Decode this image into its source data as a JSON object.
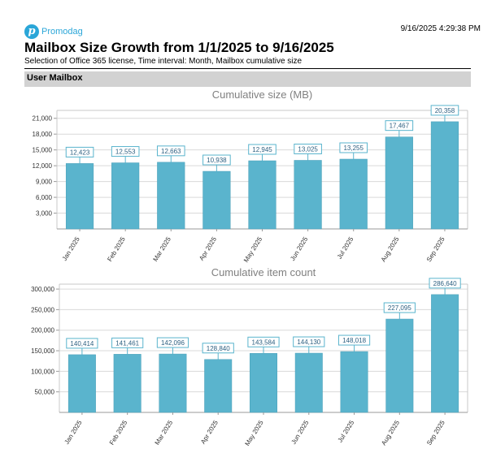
{
  "brand": {
    "name": "Promodag",
    "logo_letter": "p"
  },
  "timestamp": "9/16/2025 4:29:38 PM",
  "report": {
    "title": "Mailbox Size Growth from 1/1/2025 to 9/16/2025",
    "subtitle": "Selection of Office 365 license, Time interval: Month, Mailbox cumulative size"
  },
  "section": {
    "label": "User Mailbox"
  },
  "colors": {
    "bar": "#5ab4cd",
    "bar_edge": "#4a9fb8",
    "label_border": "#5ab4cd",
    "label_text": "#2c5f80",
    "grid": "#d9d9d9",
    "title_text": "#808080"
  },
  "chart_data": [
    {
      "type": "bar",
      "title": "Cumulative size (MB)",
      "categories": [
        "Jan 2025",
        "Feb 2025",
        "Mar 2025",
        "Apr 2025",
        "May 2025",
        "Jun 2025",
        "Jul 2025",
        "Aug 2025",
        "Sep 2025"
      ],
      "values": [
        12423,
        12553,
        12663,
        10938,
        12945,
        13025,
        13255,
        17467,
        20358
      ],
      "data_labels": [
        "12,423",
        "12,553",
        "12,663",
        "10,938",
        "12,945",
        "13,025",
        "13,255",
        "17,467",
        "20,358"
      ],
      "yticks": [
        3000,
        6000,
        9000,
        12000,
        15000,
        18000,
        21000
      ],
      "ytick_labels": [
        "3,000",
        "6,000",
        "9,000",
        "12,000",
        "15,000",
        "18,000",
        "21,000"
      ],
      "ylim": [
        0,
        22500
      ],
      "grid": true,
      "legend": "none"
    },
    {
      "type": "bar",
      "title": "Cumulative item count",
      "categories": [
        "Jan 2025",
        "Feb 2025",
        "Mar 2025",
        "Apr 2025",
        "May 2025",
        "Jun 2025",
        "Jul 2025",
        "Aug 2025",
        "Sep 2025"
      ],
      "values": [
        140414,
        141461,
        142096,
        128840,
        143584,
        144130,
        148018,
        227095,
        286640
      ],
      "data_labels": [
        "140,414",
        "141,461",
        "142,096",
        "128,840",
        "143,584",
        "144,130",
        "148,018",
        "227,095",
        "286,640"
      ],
      "yticks": [
        50000,
        100000,
        150000,
        200000,
        250000,
        300000
      ],
      "ytick_labels": [
        "50,000",
        "100,000",
        "150,000",
        "200,000",
        "250,000",
        "300,000"
      ],
      "ylim": [
        0,
        312000
      ],
      "grid": true,
      "legend": "none"
    }
  ]
}
